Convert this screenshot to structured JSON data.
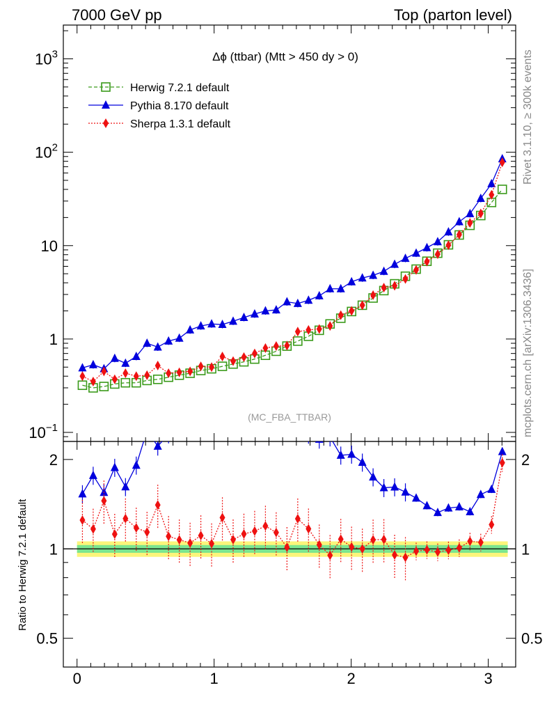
{
  "header": {
    "left": "7000 GeV pp",
    "right": "Top (parton level)"
  },
  "side_labels": {
    "rivet": "Rivet 3.1.10, ≥ 300k events",
    "mcplots": "mcplots.cern.ch [arXiv:1306.3436]"
  },
  "chart_data": {
    "type": "line",
    "title": "Δϕ (ttbar) (Mtt > 450 dy > 0)",
    "watermark": "(MC_FBA_TTBAR)",
    "xlim": [
      -0.1,
      3.2
    ],
    "x_ticks": [
      "0",
      "1",
      "2",
      "3"
    ],
    "main": {
      "yscale": "log",
      "ylim": [
        0.08,
        2300
      ],
      "y_ticks": [
        {
          "v": 0.1,
          "base": "10",
          "exp": "−1"
        },
        {
          "v": 1,
          "base": "1",
          "exp": ""
        },
        {
          "v": 10,
          "base": "10",
          "exp": ""
        },
        {
          "v": 100,
          "base": "10",
          "exp": "2"
        },
        {
          "v": 1000,
          "base": "10",
          "exp": "3"
        }
      ]
    },
    "ratio": {
      "ylabel": "Ratio to Herwig 7.2.1 default",
      "yscale": "log",
      "ylim": [
        0.4,
        2.3
      ],
      "y_ticks": [
        "0.5",
        "1",
        "2"
      ],
      "y_tick_values": [
        0.5,
        1,
        2
      ],
      "band_inner": [
        0.97,
        1.03
      ],
      "band_outer": [
        0.94,
        1.06
      ]
    },
    "x": [
      0.0393,
      0.1178,
      0.1963,
      0.2749,
      0.3534,
      0.432,
      0.5105,
      0.589,
      0.6676,
      0.7461,
      0.8247,
      0.9032,
      0.9817,
      1.0603,
      1.1388,
      1.2174,
      1.2959,
      1.3744,
      1.453,
      1.5315,
      1.6101,
      1.6886,
      1.7671,
      1.8457,
      1.9242,
      2.0028,
      2.0813,
      2.1598,
      2.2384,
      2.3169,
      2.3955,
      2.474,
      2.5525,
      2.6311,
      2.7096,
      2.7882,
      2.8667,
      2.9452,
      3.0238,
      3.1023
    ],
    "series": [
      {
        "name": "Herwig 7.2.1 default",
        "color": "#3a9a1a",
        "marker": "open-square",
        "line": "dashed",
        "values": [
          0.32,
          0.3,
          0.31,
          0.33,
          0.34,
          0.34,
          0.36,
          0.37,
          0.39,
          0.41,
          0.43,
          0.46,
          0.48,
          0.51,
          0.54,
          0.57,
          0.61,
          0.67,
          0.74,
          0.84,
          0.95,
          1.07,
          1.24,
          1.45,
          1.67,
          1.97,
          2.3,
          2.75,
          3.3,
          3.9,
          4.7,
          5.6,
          6.8,
          8.3,
          10.2,
          13.0,
          16.5,
          21.0,
          29.0,
          40.0
        ]
      },
      {
        "name": "Pythia 8.170 default",
        "color": "#0000dd",
        "marker": "filled-triangle",
        "line": "solid",
        "values": [
          0.49,
          0.53,
          0.48,
          0.62,
          0.55,
          0.65,
          0.9,
          0.82,
          0.95,
          1.02,
          1.25,
          1.38,
          1.45,
          1.43,
          1.55,
          1.7,
          1.85,
          2.0,
          2.05,
          2.5,
          2.4,
          2.6,
          2.9,
          3.45,
          3.45,
          4.1,
          4.5,
          4.8,
          5.3,
          6.3,
          7.3,
          8.3,
          9.5,
          11.0,
          14.0,
          18.0,
          22.0,
          32.0,
          46.0,
          85.0
        ]
      },
      {
        "name": "Sherpa 1.3.1 default",
        "color": "#ee1111",
        "marker": "filled-diamond",
        "line": "dotted",
        "values": [
          0.4,
          0.35,
          0.45,
          0.37,
          0.43,
          0.4,
          0.41,
          0.52,
          0.43,
          0.44,
          0.45,
          0.51,
          0.5,
          0.65,
          0.58,
          0.64,
          0.7,
          0.8,
          0.84,
          0.85,
          1.2,
          1.25,
          1.28,
          1.38,
          1.8,
          2.0,
          2.3,
          2.95,
          3.55,
          3.72,
          4.4,
          5.5,
          6.75,
          8.1,
          10.1,
          13.1,
          17.5,
          22.1,
          35.0,
          78.0
        ]
      }
    ]
  }
}
